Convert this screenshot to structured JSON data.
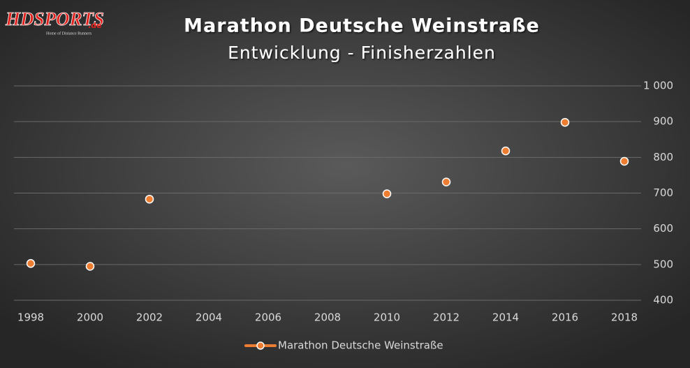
{
  "logo": {
    "brand": "HDSPORTS",
    "domain": ".de",
    "tagline": "Home of Distance Runners"
  },
  "chart_data": {
    "type": "scatter",
    "title": "Marathon Deutsche Weinstraße",
    "subtitle": "Entwicklung - Finisherzahlen",
    "series": [
      {
        "name": "Marathon Deutsche Weinstraße",
        "color": "#ed7d31",
        "x": [
          1998,
          2000,
          2002,
          2010,
          2012,
          2014,
          2016,
          2018
        ],
        "values": [
          503,
          495,
          683,
          698,
          731,
          818,
          898,
          789
        ]
      }
    ],
    "xlim": [
      1998,
      2018
    ],
    "xticks": [
      1998,
      2000,
      2002,
      2004,
      2006,
      2008,
      2010,
      2012,
      2014,
      2016,
      2018
    ],
    "ylim": [
      400,
      1000
    ],
    "yticks": [
      400,
      500,
      600,
      700,
      800,
      900,
      {
        "value": 1000,
        "label": "1 000"
      }
    ],
    "grid": true,
    "y_axis_side": "right",
    "legend": "bottom"
  }
}
